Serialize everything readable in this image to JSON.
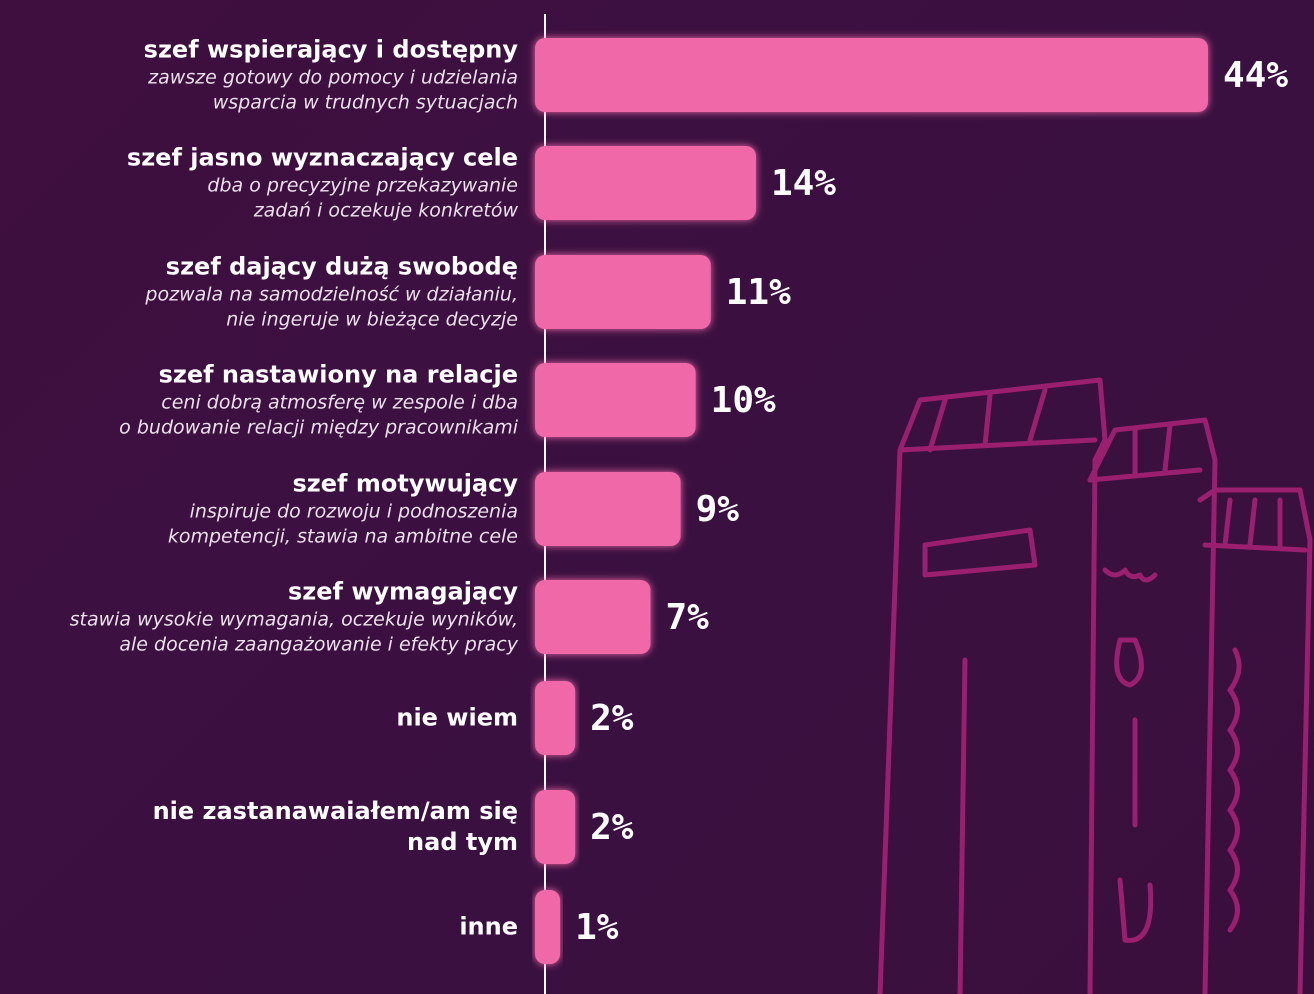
{
  "chart_data": {
    "type": "bar",
    "orientation": "horizontal",
    "categories": [
      "szef wspierający i dostępny",
      "szef jasno wyznaczający cele",
      "szef dający dużą swobodę",
      "szef nastawiony na relacje",
      "szef motywujący",
      "szef wymagający",
      "nie wiem",
      "nie zastanawaiałem/am się nad tym",
      "inne"
    ],
    "descriptions": [
      [
        "zawsze gotowy do pomocy i udzielania",
        "wsparcia w trudnych sytuacjach"
      ],
      [
        "dba o precyzyjne przekazywanie",
        "zadań i oczekuje konkretów"
      ],
      [
        "pozwala na samodzielność w działaniu,",
        "nie ingeruje w bieżące decyzje"
      ],
      [
        "ceni dobrą atmosferę w zespole i dba",
        "o budowanie relacji między pracownikami"
      ],
      [
        "inspiruje do rozwoju i podnoszenia",
        "kompetencji, stawia na ambitne cele"
      ],
      [
        "stawia wysokie wymagania, oczekuje wyników,",
        "ale docenia zaangażowanie i efekty pracy"
      ],
      null,
      null,
      null
    ],
    "values": [
      44,
      14,
      11,
      10,
      9,
      7,
      2,
      2,
      1
    ],
    "value_labels": [
      "44%",
      "14%",
      "11%",
      "10%",
      "9%",
      "7%",
      "2%",
      "2%",
      "1%"
    ],
    "color": "#f068a8"
  }
}
